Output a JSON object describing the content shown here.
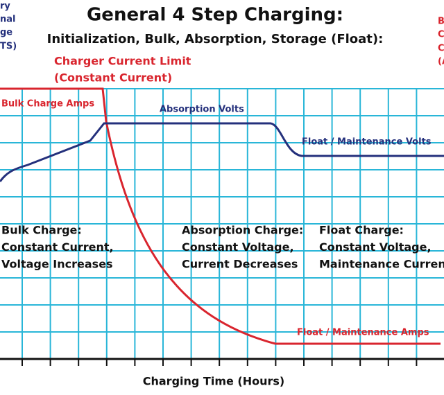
{
  "header": {
    "title": "General 4 Step Charging:",
    "subtitle": "Initialization, Bulk, Absorption, Storage (Float):"
  },
  "left_axis_label": [
    "ry",
    "nal",
    "ge",
    "TS)"
  ],
  "right_axis_label": [
    "B",
    "C",
    "C",
    "(A"
  ],
  "annotations": {
    "current_limit": [
      "Charger Current Limit",
      "(Constant Current)"
    ],
    "bulk_amps": "Bulk Charge Amps",
    "absorption_volts": "Absorption Volts",
    "float_volts": "Float / Maintenance Volts",
    "float_amps": "Float / Maintenance Amps"
  },
  "phases": [
    {
      "lines": [
        "Bulk Charge:",
        "Constant Current,",
        "Voltage Increases"
      ]
    },
    {
      "lines": [
        "Absorption Charge:",
        "Constant Voltage,",
        "Current Decreases"
      ]
    },
    {
      "lines": [
        "Float Charge:",
        "Constant Voltage,",
        "Maintenance Curren"
      ]
    }
  ],
  "x_axis_label": "Charging Time (Hours)"
}
